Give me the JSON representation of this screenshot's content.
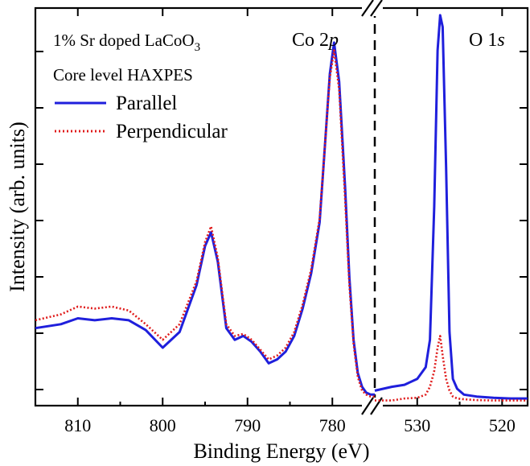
{
  "chart_data": {
    "type": "line",
    "axis_break": "between 775 and 535 eV",
    "xlabel": "Binding Energy (eV)",
    "ylabel": "Intensity (arb. units)",
    "x_direction": "reversed",
    "grid": false,
    "legend_position": "top-left",
    "panels": [
      {
        "xlim": [
          815,
          775
        ],
        "ticks": [
          810,
          800,
          790,
          780
        ],
        "tick_labels": [
          "810",
          "800",
          "790",
          "780"
        ],
        "annotation": "Co 2p"
      },
      {
        "xlim": [
          535,
          517
        ],
        "ticks": [
          530,
          520
        ],
        "tick_labels": [
          "530",
          "520"
        ],
        "annotation": "O 1s"
      }
    ],
    "ylim": [
      0,
      1
    ],
    "annotations": {
      "sample": "1% Sr doped LaCoO",
      "sample_subscript": "3",
      "technique": "Core level HAXPES",
      "co_label_main": "Co 2",
      "co_label_italic": "p",
      "o_label_main": "O 1",
      "o_label_italic": "s"
    },
    "series": [
      {
        "name": "Parallel",
        "color": "#1f1fdc",
        "style": "solid",
        "panel1": {
          "x": [
            815,
            812,
            810,
            808,
            806,
            804,
            802,
            800,
            798,
            796,
            795,
            794.3,
            793.5,
            792.5,
            791.5,
            790.5,
            789.5,
            788.5,
            787.5,
            786.5,
            785.5,
            784.5,
            783.5,
            782.5,
            781.5,
            780.8,
            780.3,
            779.8,
            779.2,
            778.5,
            778,
            777.5,
            777,
            776.5,
            776,
            775.5,
            775
          ],
          "y": [
            0.19,
            0.2,
            0.215,
            0.21,
            0.215,
            0.21,
            0.185,
            0.14,
            0.18,
            0.3,
            0.4,
            0.435,
            0.36,
            0.19,
            0.16,
            0.17,
            0.155,
            0.13,
            0.1,
            0.11,
            0.13,
            0.17,
            0.24,
            0.33,
            0.46,
            0.68,
            0.84,
            0.92,
            0.82,
            0.55,
            0.32,
            0.16,
            0.075,
            0.04,
            0.025,
            0.02,
            0.02
          ]
        },
        "panel2": {
          "x": [
            535,
            533,
            531.5,
            530,
            529,
            528.5,
            528,
            527.6,
            527.3,
            527,
            526.6,
            526.2,
            525.8,
            525.3,
            524.5,
            523,
            521,
            519,
            517
          ],
          "y": [
            0.03,
            0.04,
            0.045,
            0.06,
            0.09,
            0.16,
            0.5,
            0.9,
            0.99,
            0.96,
            0.6,
            0.18,
            0.06,
            0.035,
            0.02,
            0.015,
            0.012,
            0.01,
            0.01
          ]
        }
      },
      {
        "name": "Perpendicular",
        "color": "#e01c1c",
        "style": "dotted",
        "panel1": {
          "x": [
            815,
            812,
            810,
            808,
            806,
            804,
            802,
            800,
            798,
            796,
            795,
            794.3,
            793.5,
            792.5,
            791.5,
            790.5,
            789.5,
            788.5,
            787.5,
            786.5,
            785.5,
            784.5,
            783.5,
            782.5,
            781.5,
            780.8,
            780.3,
            779.8,
            779.2,
            778.5,
            778,
            777.5,
            777,
            776.5,
            776,
            775.5,
            775
          ],
          "y": [
            0.21,
            0.225,
            0.245,
            0.24,
            0.245,
            0.235,
            0.2,
            0.16,
            0.2,
            0.31,
            0.41,
            0.45,
            0.37,
            0.2,
            0.17,
            0.175,
            0.16,
            0.135,
            0.11,
            0.12,
            0.14,
            0.18,
            0.25,
            0.34,
            0.47,
            0.68,
            0.83,
            0.9,
            0.8,
            0.52,
            0.3,
            0.15,
            0.065,
            0.03,
            0.02,
            0.015,
            0.015
          ]
        },
        "panel2": {
          "x": [
            535,
            533,
            531.5,
            530,
            529,
            528.5,
            528,
            527.6,
            527.3,
            527,
            526.6,
            526.2,
            525.8,
            525.3,
            524.5,
            523,
            521,
            519,
            517
          ],
          "y": [
            0.005,
            0.005,
            0.01,
            0.012,
            0.02,
            0.04,
            0.08,
            0.14,
            0.17,
            0.12,
            0.06,
            0.03,
            0.015,
            0.01,
            0.008,
            0.006,
            0.005,
            0.005,
            0.005
          ]
        }
      }
    ]
  }
}
